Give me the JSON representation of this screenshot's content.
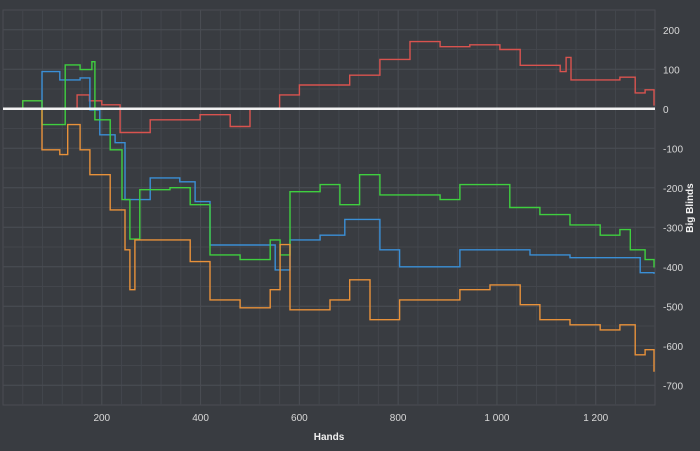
{
  "chart_data": {
    "type": "line",
    "title": "",
    "xlabel": "Hands",
    "ylabel": "Big Blinds",
    "xlim": [
      0,
      1320
    ],
    "ylim": [
      -750,
      250
    ],
    "x_ticks": [
      200,
      400,
      600,
      800,
      1000,
      1200
    ],
    "x_tick_labels": [
      "200",
      "400",
      "600",
      "800",
      "1 000",
      "1 200"
    ],
    "y_ticks": [
      200,
      100,
      0,
      -100,
      -200,
      -300,
      -400,
      -500,
      -600,
      -700
    ],
    "y_tick_labels": [
      "200",
      "100",
      "0",
      "-100",
      "-200",
      "-300",
      "-400",
      "-500",
      "-600",
      "-700"
    ],
    "grid": true,
    "y_axis_side": "right",
    "zero_line_color": "#f2f2f2",
    "background_color": "#393c41",
    "grid_color": "#4a4d53",
    "series": [
      {
        "color": "#d9534f",
        "points": [
          [
            0,
            0
          ],
          [
            40,
            20
          ],
          [
            79,
            0
          ],
          [
            150,
            35
          ],
          [
            175,
            20
          ],
          [
            200,
            10
          ],
          [
            237,
            -60
          ],
          [
            298,
            -28
          ],
          [
            399,
            -15
          ],
          [
            460,
            -45
          ],
          [
            500,
            0
          ],
          [
            560,
            35
          ],
          [
            600,
            60
          ],
          [
            702,
            85
          ],
          [
            763,
            125
          ],
          [
            824,
            170
          ],
          [
            885,
            157
          ],
          [
            945,
            162
          ],
          [
            1006,
            150
          ],
          [
            1047,
            110
          ],
          [
            1128,
            94
          ],
          [
            1140,
            130
          ],
          [
            1150,
            73
          ],
          [
            1249,
            80
          ],
          [
            1280,
            40
          ],
          [
            1300,
            48
          ],
          [
            1318,
            8
          ]
        ]
      },
      {
        "color": "#3a8fd6",
        "points": [
          [
            0,
            0
          ],
          [
            79,
            94
          ],
          [
            115,
            73
          ],
          [
            156,
            78
          ],
          [
            176,
            -3
          ],
          [
            196,
            -66
          ],
          [
            227,
            -86
          ],
          [
            247,
            -230
          ],
          [
            298,
            -175
          ],
          [
            358,
            -185
          ],
          [
            389,
            -235
          ],
          [
            419,
            -345
          ],
          [
            551,
            -408
          ],
          [
            581,
            -332
          ],
          [
            642,
            -320
          ],
          [
            692,
            -280
          ],
          [
            763,
            -357
          ],
          [
            803,
            -400
          ],
          [
            925,
            -357
          ],
          [
            1067,
            -370
          ],
          [
            1148,
            -377
          ],
          [
            1249,
            -377
          ],
          [
            1290,
            -415
          ],
          [
            1318,
            -418
          ]
        ]
      },
      {
        "color": "#3fcf3f",
        "points": [
          [
            0,
            0
          ],
          [
            40,
            20
          ],
          [
            79,
            -40
          ],
          [
            126,
            111
          ],
          [
            156,
            99
          ],
          [
            180,
            119
          ],
          [
            186,
            -28
          ],
          [
            217,
            -104
          ],
          [
            241,
            -230
          ],
          [
            257,
            -330
          ],
          [
            277,
            -205
          ],
          [
            338,
            -200
          ],
          [
            379,
            -243
          ],
          [
            419,
            -370
          ],
          [
            480,
            -382
          ],
          [
            541,
            -332
          ],
          [
            561,
            -370
          ],
          [
            581,
            -210
          ],
          [
            642,
            -192
          ],
          [
            682,
            -243
          ],
          [
            722,
            -167
          ],
          [
            763,
            -218
          ],
          [
            803,
            -218
          ],
          [
            885,
            -230
          ],
          [
            925,
            -192
          ],
          [
            986,
            -192
          ],
          [
            1026,
            -250
          ],
          [
            1087,
            -268
          ],
          [
            1148,
            -294
          ],
          [
            1209,
            -320
          ],
          [
            1249,
            -306
          ],
          [
            1270,
            -357
          ],
          [
            1300,
            -382
          ],
          [
            1318,
            -402
          ]
        ]
      },
      {
        "color": "#e8913a",
        "points": [
          [
            0,
            0
          ],
          [
            75,
            0
          ],
          [
            79,
            -104
          ],
          [
            115,
            -116
          ],
          [
            131,
            -40
          ],
          [
            156,
            -104
          ],
          [
            176,
            -167
          ],
          [
            217,
            -256
          ],
          [
            247,
            -357
          ],
          [
            257,
            -458
          ],
          [
            267,
            -332
          ],
          [
            318,
            -332
          ],
          [
            379,
            -387
          ],
          [
            419,
            -484
          ],
          [
            480,
            -504
          ],
          [
            541,
            -458
          ],
          [
            561,
            -344
          ],
          [
            581,
            -509
          ],
          [
            662,
            -484
          ],
          [
            702,
            -433
          ],
          [
            743,
            -534
          ],
          [
            803,
            -484
          ],
          [
            864,
            -484
          ],
          [
            925,
            -458
          ],
          [
            986,
            -446
          ],
          [
            1047,
            -496
          ],
          [
            1087,
            -534
          ],
          [
            1148,
            -547
          ],
          [
            1209,
            -560
          ],
          [
            1249,
            -547
          ],
          [
            1280,
            -623
          ],
          [
            1300,
            -610
          ],
          [
            1318,
            -666
          ]
        ]
      }
    ]
  }
}
